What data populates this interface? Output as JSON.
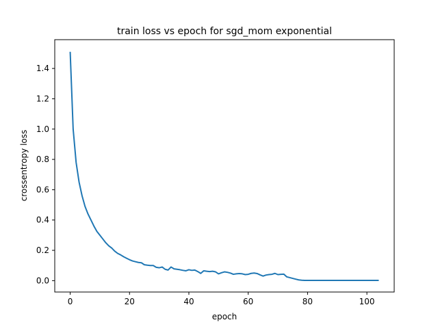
{
  "chart_data": {
    "type": "line",
    "title": "train loss vs epoch for sgd_mom exponential",
    "xlabel": "epoch",
    "ylabel": "crossentropy loss",
    "xlim": [
      -5.2,
      109.2
    ],
    "ylim": [
      -0.075,
      1.59
    ],
    "xticks": [
      0,
      20,
      40,
      60,
      80,
      100
    ],
    "xtick_labels": [
      "0",
      "20",
      "40",
      "60",
      "80",
      "100"
    ],
    "yticks": [
      0.0,
      0.2,
      0.4,
      0.6,
      0.8,
      1.0,
      1.2,
      1.4
    ],
    "ytick_labels": [
      "0.0",
      "0.2",
      "0.4",
      "0.6",
      "0.8",
      "1.0",
      "1.2",
      "1.4"
    ],
    "grid": false,
    "legend": "none",
    "line_color": "#1f77b4",
    "series": [
      {
        "x": [
          0,
          1,
          2,
          3,
          4,
          5,
          6,
          7,
          8,
          9,
          10,
          11,
          12,
          13,
          14,
          15,
          16,
          17,
          18,
          19,
          20,
          21,
          22,
          23,
          24,
          25,
          26,
          27,
          28,
          29,
          30,
          31,
          32,
          33,
          34,
          35,
          36,
          37,
          38,
          39,
          40,
          41,
          42,
          43,
          44,
          45,
          46,
          47,
          48,
          49,
          50,
          51,
          52,
          53,
          54,
          55,
          56,
          57,
          58,
          59,
          60,
          61,
          62,
          63,
          64,
          65,
          66,
          67,
          68,
          69,
          70,
          71,
          72,
          73,
          74,
          75,
          76,
          77,
          78,
          79,
          80,
          81,
          82,
          83,
          84,
          85,
          86,
          87,
          88,
          89,
          90,
          91,
          92,
          93,
          94,
          95,
          96,
          97,
          98,
          99,
          100,
          101,
          102,
          103,
          104
        ],
        "y": [
          1.51,
          1.0,
          0.78,
          0.65,
          0.56,
          0.49,
          0.44,
          0.4,
          0.36,
          0.325,
          0.3,
          0.275,
          0.25,
          0.23,
          0.215,
          0.195,
          0.18,
          0.17,
          0.158,
          0.148,
          0.138,
          0.13,
          0.125,
          0.12,
          0.118,
          0.105,
          0.102,
          0.1,
          0.1,
          0.088,
          0.085,
          0.09,
          0.075,
          0.07,
          0.09,
          0.078,
          0.075,
          0.072,
          0.068,
          0.065,
          0.072,
          0.068,
          0.07,
          0.06,
          0.048,
          0.065,
          0.062,
          0.06,
          0.062,
          0.058,
          0.045,
          0.052,
          0.058,
          0.055,
          0.05,
          0.042,
          0.045,
          0.047,
          0.045,
          0.04,
          0.042,
          0.048,
          0.05,
          0.047,
          0.038,
          0.03,
          0.037,
          0.04,
          0.042,
          0.048,
          0.04,
          0.042,
          0.043,
          0.025,
          0.02,
          0.015,
          0.01,
          0.005,
          0.003,
          0.002,
          0.002,
          0.002,
          0.002,
          0.002,
          0.002,
          0.002,
          0.002,
          0.002,
          0.002,
          0.002,
          0.002,
          0.002,
          0.002,
          0.002,
          0.002,
          0.002,
          0.002,
          0.002,
          0.002,
          0.002,
          0.002,
          0.002,
          0.002,
          0.002,
          0.002
        ]
      }
    ]
  }
}
